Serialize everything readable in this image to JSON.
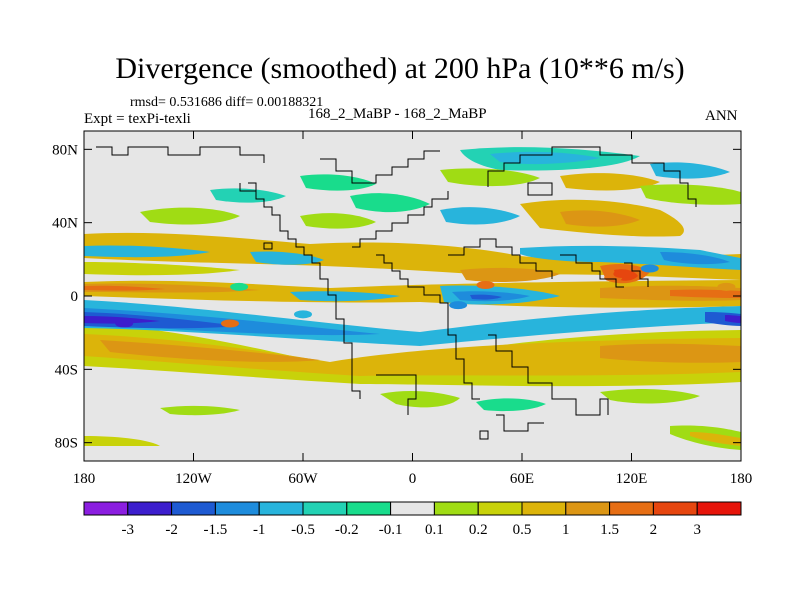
{
  "chart_data": {
    "type": "heatmap",
    "title": "Divergence (smoothed) at 200 hPa (10**6 m/s)",
    "stats": {
      "label": "rmsd= 0.531686 diff= 0.00188321",
      "rmsd": 0.531686,
      "diff": 0.00188321
    },
    "experiment": "Expt = texPi-texli",
    "comparison": "168_2_MaBP - 168_2_MaBP",
    "season": "ANN",
    "xlabel": "",
    "ylabel": "",
    "xlim": [
      -180,
      180
    ],
    "ylim": [
      -90,
      90
    ],
    "x_ticks": [
      {
        "value": -180,
        "label": "180"
      },
      {
        "value": -120,
        "label": "120W"
      },
      {
        "value": -60,
        "label": "60W"
      },
      {
        "value": 0,
        "label": "0"
      },
      {
        "value": 60,
        "label": "60E"
      },
      {
        "value": 120,
        "label": "120E"
      },
      {
        "value": 180,
        "label": "180"
      }
    ],
    "y_ticks": [
      {
        "value": 80,
        "label": "80N"
      },
      {
        "value": 40,
        "label": "40N"
      },
      {
        "value": 0,
        "label": "0"
      },
      {
        "value": -40,
        "label": "40S"
      },
      {
        "value": -80,
        "label": "80S"
      }
    ],
    "colorbar": {
      "colors": [
        "#8b1ee0",
        "#3c1ecd",
        "#1e5ad2",
        "#1e8cdc",
        "#28b4dc",
        "#23d2b4",
        "#19dc8c",
        "#e6e6e6",
        "#a0dc14",
        "#c8d20a",
        "#dcb40a",
        "#dc9614",
        "#e66e14",
        "#e6460f",
        "#e6140a"
      ],
      "labels": [
        "-3",
        "-2",
        "-1.5",
        "-1",
        "-0.5",
        "-0.2",
        "-0.1",
        "0.1",
        "0.2",
        "0.5",
        "1",
        "1.5",
        "2",
        "3"
      ]
    },
    "features": [
      {
        "lon": -158,
        "lat": -15,
        "level": 1
      },
      {
        "lon": -60,
        "lat": -10,
        "level": 4
      },
      {
        "lon": -95,
        "lat": 5,
        "level": 6
      },
      {
        "lon": 172,
        "lat": 5,
        "level": 11
      },
      {
        "lon": 110,
        "lat": 10,
        "level": 12
      },
      {
        "lon": 115,
        "lat": 12,
        "level": 13
      },
      {
        "lon": 40,
        "lat": 6,
        "level": 12
      },
      {
        "lon": 25,
        "lat": -5,
        "level": 3
      },
      {
        "lon": -100,
        "lat": -15,
        "level": 12
      },
      {
        "lon": 130,
        "lat": 15,
        "level": 3
      }
    ]
  }
}
